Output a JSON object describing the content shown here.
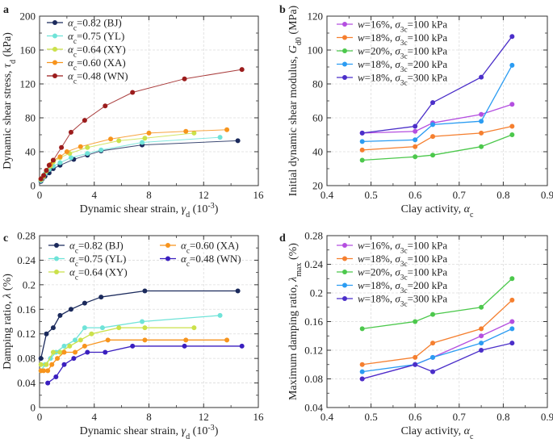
{
  "figure": {
    "panels": [
      "a",
      "b",
      "c",
      "d"
    ]
  },
  "chart_data": [
    {
      "id": "a",
      "panel_label": "a",
      "type": "scatter",
      "xlabel": "Dynamic shear strain, γd (10⁻³)",
      "ylabel": "Dynamic shear stress, τd (kPa)",
      "xlim": [
        0,
        16
      ],
      "ylim": [
        0,
        200
      ],
      "xticks": [
        "0",
        "4",
        "8",
        "12",
        "16"
      ],
      "yticks": [
        "0",
        "40",
        "80",
        "120",
        "160",
        "200"
      ],
      "legend_position": "top-left",
      "series": [
        {
          "name": "αc=0.82 (BJ)",
          "color": "#1b2a5c",
          "x": [
            0.1,
            0.2,
            0.4,
            0.7,
            1.0,
            1.5,
            2.5,
            3.5,
            4.5,
            7.5,
            14.5
          ],
          "y": [
            5,
            8,
            11,
            15,
            20,
            24,
            31,
            36,
            41,
            48,
            53
          ]
        },
        {
          "name": "αc=0.75 (YL)",
          "color": "#6fe3d8",
          "x": [
            0.1,
            0.2,
            0.4,
            0.7,
            1.0,
            1.5,
            2.3,
            3.5,
            4.5,
            7.5,
            13.2
          ],
          "y": [
            6,
            9,
            14,
            19,
            23,
            27,
            33,
            38,
            42,
            51,
            57
          ]
        },
        {
          "name": "αc=0.64 (XY)",
          "color": "#cbe14a",
          "x": [
            0.1,
            0.3,
            0.5,
            0.8,
            1.0,
            1.5,
            2.2,
            3.5,
            5.8,
            7.7,
            11.3
          ],
          "y": [
            7,
            11,
            17,
            23,
            28,
            33,
            38,
            45,
            53,
            56,
            62
          ]
        },
        {
          "name": "αc=0.60 (XA)",
          "color": "#f7941d",
          "x": [
            0.1,
            0.3,
            0.5,
            0.8,
            1.0,
            1.5,
            2.0,
            3.0,
            5.2,
            8.0,
            10.7,
            13.7
          ],
          "y": [
            8,
            12,
            18,
            25,
            30,
            34,
            40,
            46,
            55,
            62,
            64,
            66
          ]
        },
        {
          "name": "αc=0.48 (WN)",
          "color": "#9b1c1c",
          "x": [
            0.1,
            0.3,
            0.5,
            0.7,
            1.0,
            1.6,
            2.3,
            3.3,
            4.8,
            6.8,
            10.6,
            14.8
          ],
          "y": [
            8,
            12,
            18,
            24,
            30,
            45,
            63,
            77,
            94,
            110,
            126,
            137
          ]
        }
      ]
    },
    {
      "id": "b",
      "panel_label": "b",
      "type": "line",
      "xlabel": "Clay activity, αc",
      "ylabel": "Initial dynamic shear modulus, Gd0 (MPa)",
      "xlim": [
        0.4,
        0.9
      ],
      "ylim": [
        20,
        120
      ],
      "xticks": [
        "0.4",
        "0.5",
        "0.6",
        "0.7",
        "0.8",
        "0.9"
      ],
      "yticks": [
        "20",
        "40",
        "60",
        "80",
        "100",
        "120"
      ],
      "x": [
        0.48,
        0.6,
        0.64,
        0.75,
        0.82
      ],
      "legend_position": "top-left",
      "series": [
        {
          "name": "w=16%, σ3c=100 kPa",
          "color": "#b44fe0",
          "values": [
            51,
            52,
            57,
            62,
            68
          ]
        },
        {
          "name": "w=18%, σ3c=100 kPa",
          "color": "#f57f2f",
          "values": [
            41,
            43,
            49,
            51,
            55
          ]
        },
        {
          "name": "w=20%, σ3c=100 kPa",
          "color": "#4cc84c",
          "values": [
            35,
            37,
            38,
            43,
            50
          ]
        },
        {
          "name": "w=18%, σ3c=200 kPa",
          "color": "#2b9cf2",
          "values": [
            46,
            47,
            56,
            58,
            91
          ]
        },
        {
          "name": "w=18%, σ3c=300 kPa",
          "color": "#4b2fc9",
          "values": [
            51,
            55,
            69,
            84,
            108
          ]
        }
      ]
    },
    {
      "id": "c",
      "panel_label": "c",
      "type": "line",
      "xlabel": "Dynamic shear strain, γd (10⁻³)",
      "ylabel": "Damping ratio, λ (%)",
      "xlim": [
        0,
        16
      ],
      "ylim": [
        0,
        0.28
      ],
      "xticks": [
        "0",
        "4",
        "8",
        "12",
        "16"
      ],
      "yticks": [
        "0",
        "0.04",
        "0.08",
        "0.12",
        "0.16",
        "0.2",
        "0.24",
        "0.28"
      ],
      "legend_position": "top",
      "legend_columns": 2,
      "series": [
        {
          "name": "αc=0.82 (BJ)",
          "color": "#1b2a5c",
          "x": [
            0.1,
            0.5,
            1.0,
            1.5,
            2.3,
            3.3,
            4.5,
            7.7,
            14.5
          ],
          "y": [
            0.08,
            0.12,
            0.13,
            0.15,
            0.16,
            0.17,
            0.18,
            0.19,
            0.19
          ]
        },
        {
          "name": "αc=0.75 (YL)",
          "color": "#6fe3d8",
          "x": [
            0.1,
            0.4,
            0.8,
            1.2,
            1.8,
            2.6,
            3.3,
            4.6,
            7.5,
            13.2
          ],
          "y": [
            0.06,
            0.07,
            0.08,
            0.09,
            0.1,
            0.11,
            0.13,
            0.13,
            0.14,
            0.15
          ]
        },
        {
          "name": "αc=0.64 (XY)",
          "color": "#cbe14a",
          "x": [
            0.1,
            0.5,
            1.0,
            1.5,
            2.2,
            3.0,
            3.8,
            5.8,
            7.7,
            11.3
          ],
          "y": [
            0.07,
            0.07,
            0.09,
            0.09,
            0.1,
            0.11,
            0.12,
            0.13,
            0.13,
            0.13
          ]
        },
        {
          "name": "αc=0.60 (XA)",
          "color": "#f7941d",
          "x": [
            0.1,
            0.3,
            0.6,
            0.9,
            1.3,
            1.8,
            2.6,
            3.3,
            5.0,
            7.7,
            10.7,
            13.7
          ],
          "y": [
            0.06,
            0.06,
            0.06,
            0.07,
            0.08,
            0.09,
            0.09,
            0.1,
            0.11,
            0.11,
            0.11,
            0.11
          ]
        },
        {
          "name": "αc=0.48 (WN)",
          "color": "#3a1fbf",
          "x": [
            0.6,
            1.2,
            1.8,
            2.5,
            3.5,
            4.8,
            6.8,
            10.6,
            14.8
          ],
          "y": [
            0.04,
            0.05,
            0.07,
            0.08,
            0.09,
            0.09,
            0.1,
            0.1,
            0.1
          ]
        }
      ]
    },
    {
      "id": "d",
      "panel_label": "d",
      "type": "line",
      "xlabel": "Clay activity, αc",
      "ylabel": "Maximum damping ratio, λmax (%)",
      "xlim": [
        0.4,
        0.9
      ],
      "ylim": [
        0.04,
        0.28
      ],
      "xticks": [
        "0.4",
        "0.5",
        "0.6",
        "0.7",
        "0.8",
        "0.9"
      ],
      "yticks": [
        "0.04",
        "0.08",
        "0.12",
        "0.16",
        "0.2",
        "0.24",
        "0.28"
      ],
      "x": [
        0.48,
        0.6,
        0.64,
        0.75,
        0.82
      ],
      "legend_position": "top-left",
      "series": [
        {
          "name": "w=16%, σ3c=100 kPa",
          "color": "#b44fe0",
          "values": [
            0.08,
            0.1,
            0.11,
            0.14,
            0.16
          ]
        },
        {
          "name": "w=18%, σ3c=100 kPa",
          "color": "#f57f2f",
          "values": [
            0.1,
            0.11,
            0.13,
            0.15,
            0.19
          ]
        },
        {
          "name": "w=20%, σ3c=100 kPa",
          "color": "#4cc84c",
          "values": [
            0.15,
            0.16,
            0.17,
            0.18,
            0.22
          ]
        },
        {
          "name": "w=18%, σ3c=200 kPa",
          "color": "#2b9cf2",
          "values": [
            0.09,
            0.1,
            0.11,
            0.13,
            0.15
          ]
        },
        {
          "name": "w=18%, σ3c=300 kPa",
          "color": "#4b2fc9",
          "values": [
            0.08,
            0.1,
            0.09,
            0.12,
            0.13
          ]
        }
      ]
    }
  ]
}
